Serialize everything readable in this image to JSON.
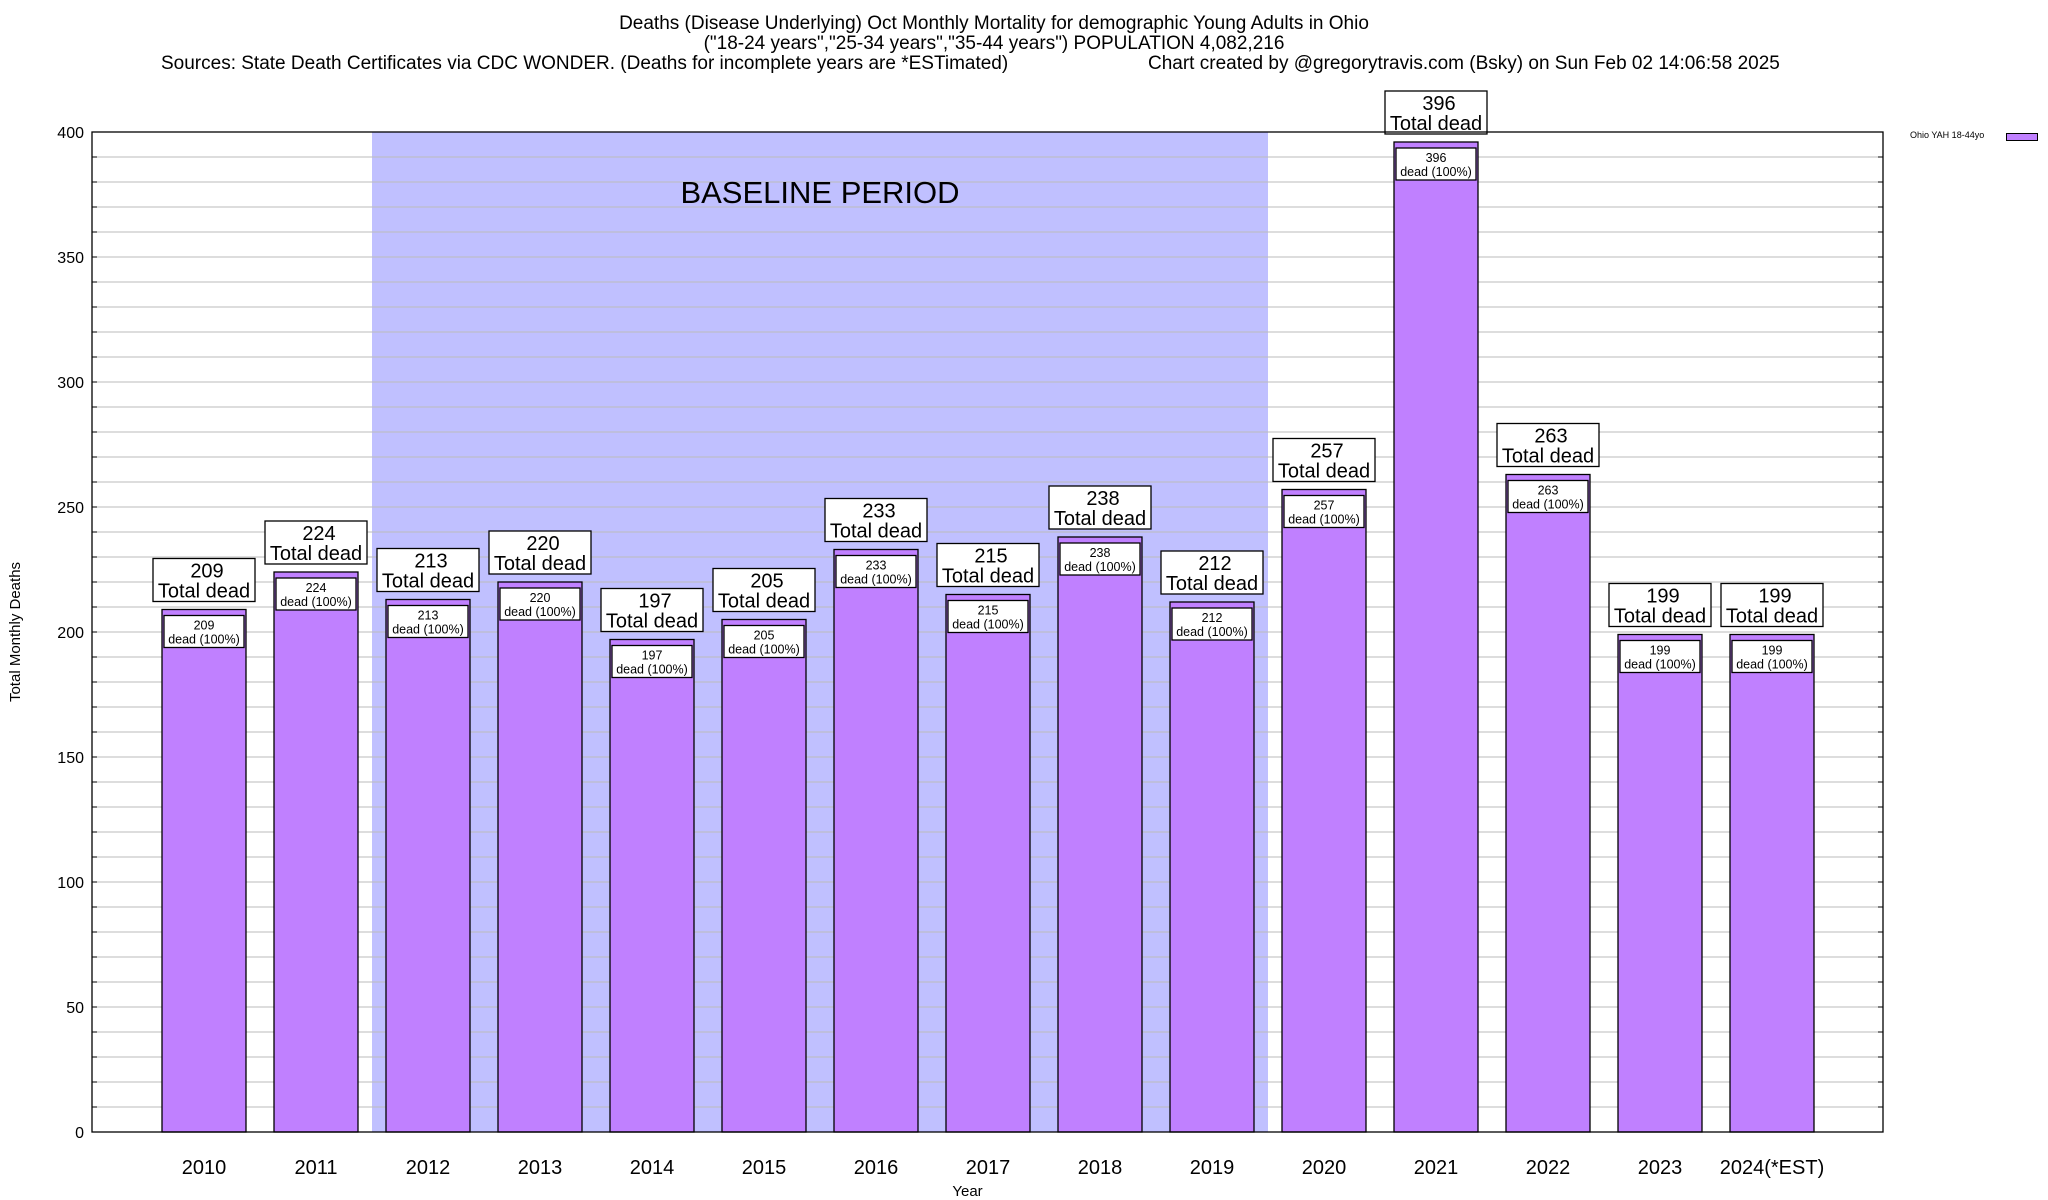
{
  "title_lines": [
    "Deaths (Disease Underlying) Oct Monthly Mortality for demographic Young Adults in Ohio",
    "(\"18-24 years\",\"25-34 years\",\"35-44 years\") POPULATION 4,082,216",
    "Sources: State Death Certificates via CDC WONDER. (Deaths for incomplete years are *ESTimated)",
    "Chart created by @gregorytravis.com (Bsky) on Sun Feb 02 14:06:58 2025"
  ],
  "chart_data": {
    "type": "bar",
    "title": "Deaths (Disease Underlying) Oct Monthly Mortality for demographic Young Adults in Ohio",
    "xlabel": "Year",
    "ylabel": "Total Monthly Deaths",
    "ylim": [
      0,
      400
    ],
    "yticks": [
      0,
      50,
      100,
      150,
      200,
      250,
      300,
      350,
      400
    ],
    "grid": true,
    "legend": {
      "position": "top-right",
      "entries": [
        "Ohio YAH 18-44yo"
      ]
    },
    "categories": [
      "2010",
      "2011",
      "2012",
      "2013",
      "2014",
      "2015",
      "2016",
      "2017",
      "2018",
      "2019",
      "2020",
      "2021",
      "2022",
      "2023",
      "2024(*EST)"
    ],
    "series": [
      {
        "name": "Ohio YAH 18-44yo",
        "values": [
          209,
          224,
          213,
          220,
          197,
          205,
          233,
          215,
          238,
          212,
          257,
          396,
          263,
          199,
          199
        ]
      }
    ],
    "total_label": "Total dead",
    "inner_label": "dead (100%)",
    "annotation": {
      "text": "BASELINE PERIOD",
      "range": [
        "2012",
        "2019"
      ]
    }
  },
  "colors": {
    "bar": "#c080ff",
    "baseline": "#c0c0ff",
    "grid": "#bbbbbb"
  }
}
